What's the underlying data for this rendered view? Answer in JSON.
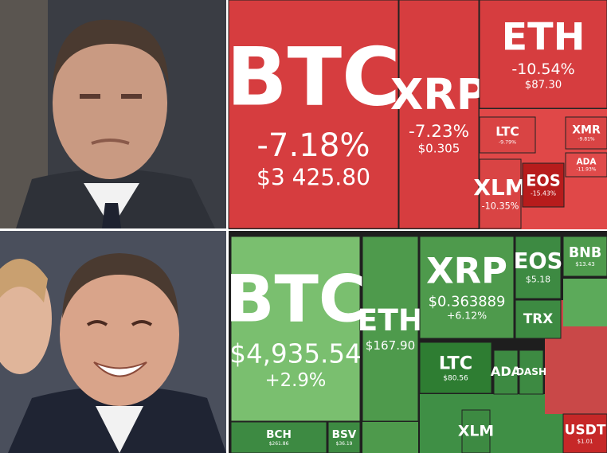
{
  "top_treemap": {
    "tiles": [
      {
        "ticker": "BTC",
        "change": "-7.18%",
        "price": "$3 425.80"
      },
      {
        "ticker": "XRP",
        "change": "-7.23%",
        "price": "$0.305"
      },
      {
        "ticker": "ETH",
        "change": "-10.54%",
        "price": "$87.30"
      },
      {
        "ticker": "LTC",
        "change": "-9.79%"
      },
      {
        "ticker": "XMR",
        "change": "-9.81%"
      },
      {
        "ticker": "ADA",
        "change": "-11.93%"
      },
      {
        "ticker": "XLM",
        "change": "-10.35%"
      },
      {
        "ticker": "EOS",
        "change": "-15.43%"
      }
    ]
  },
  "bottom_treemap": {
    "tiles": [
      {
        "ticker": "BTC",
        "price": "$4,935.54",
        "change": "+2.9%"
      },
      {
        "ticker": "ETH",
        "price": "$167.90"
      },
      {
        "ticker": "XRP",
        "price": "$0.363889",
        "change": "+6.12%"
      },
      {
        "ticker": "EOS",
        "price": "$5.18"
      },
      {
        "ticker": "BNB",
        "price": "$13.43"
      },
      {
        "ticker": "TRX"
      },
      {
        "ticker": "LTC",
        "price": "$80.56"
      },
      {
        "ticker": "ADA"
      },
      {
        "ticker": "DASH"
      },
      {
        "ticker": "XLM"
      },
      {
        "ticker": "BCH",
        "price": "$261.86"
      },
      {
        "ticker": "BSV",
        "price": "$36.19"
      },
      {
        "ticker": "USDT",
        "price": "$1.01"
      }
    ]
  }
}
